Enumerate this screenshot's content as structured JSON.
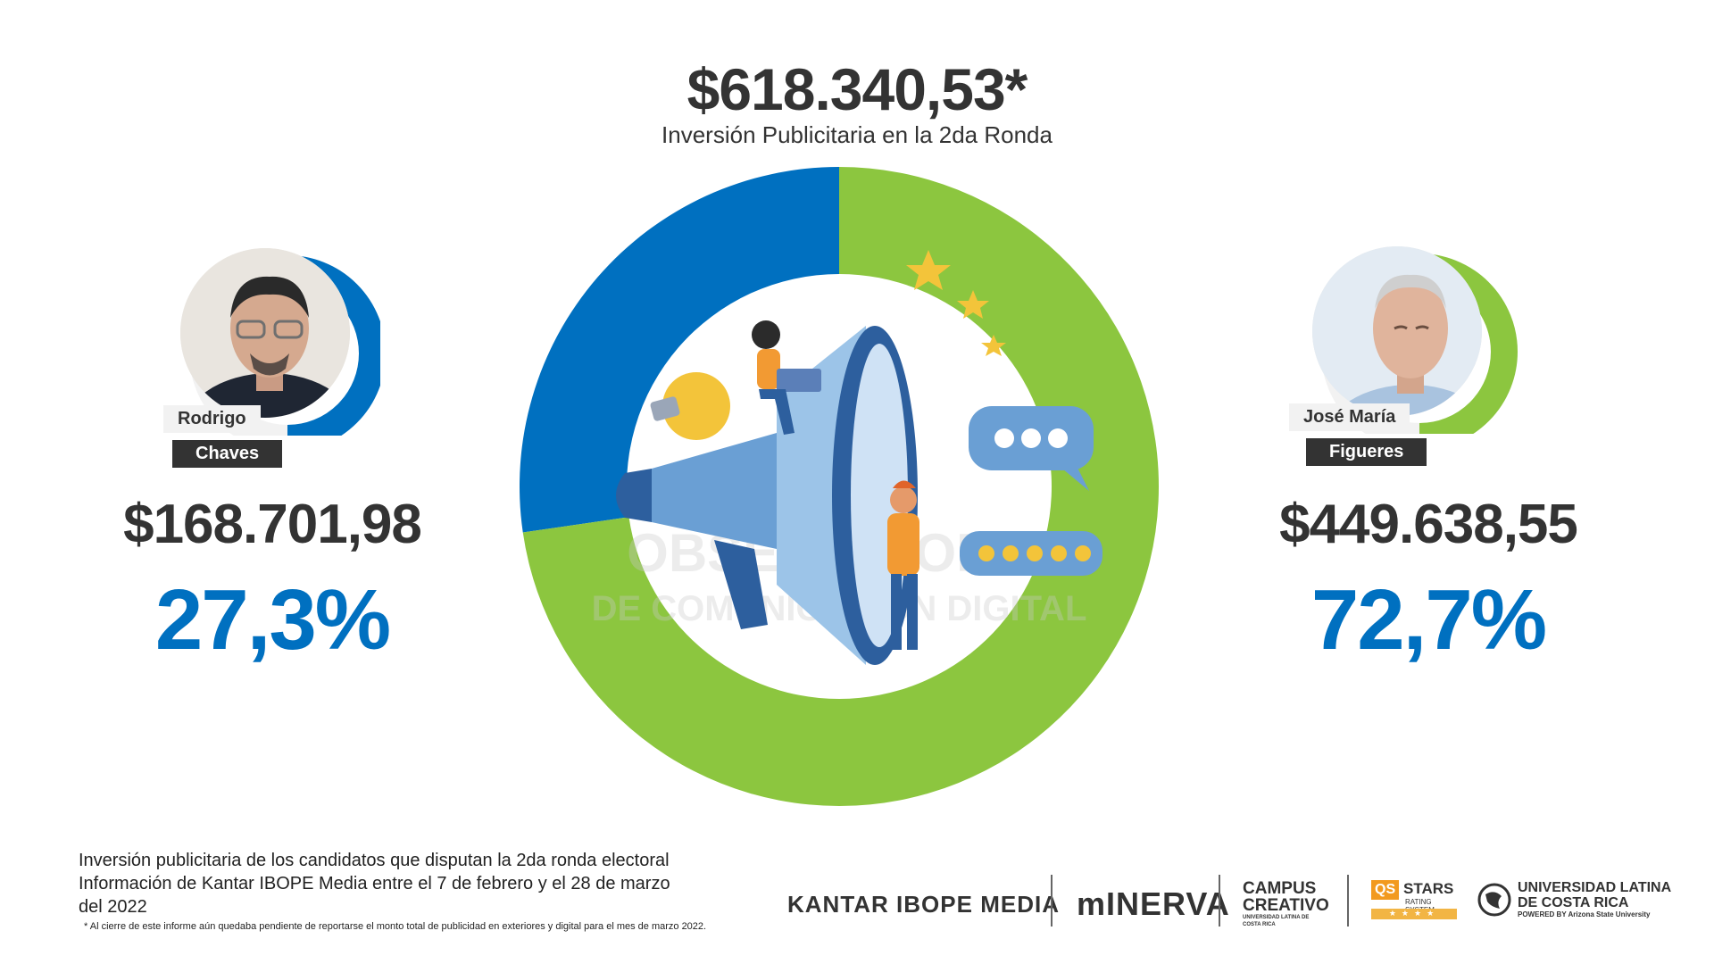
{
  "header": {
    "total": "$618.340,53*",
    "subtitle": "Inversión Publicitaria en la 2da Ronda"
  },
  "candidates": [
    {
      "first": "Rodrigo",
      "last": "Chaves",
      "amount": "$168.701,98",
      "percent": "27,3%",
      "color": "#0070c0"
    },
    {
      "first": "José María",
      "last": "Figueres",
      "amount": "$449.638,55",
      "percent": "72,7%",
      "color": "#8cc63f"
    }
  ],
  "chart_data": {
    "type": "pie",
    "categories": [
      "Rodrigo Chaves",
      "José María Figueres"
    ],
    "values": [
      27.3,
      72.7
    ],
    "colors": [
      "#0070c0",
      "#8cc63f"
    ],
    "title": "Inversión Publicitaria en la 2da Ronda"
  },
  "watermark": {
    "line1": "OBSERVATORIO",
    "line2": "DE COMUNICACIÓN DIGITAL"
  },
  "footer": {
    "line1": "Inversión publicitaria de los candidatos que disputan la 2da ronda electoral",
    "line2": "Información de Kantar IBOPE Media entre el 7 de febrero y el 28 de marzo",
    "line3": "del 2022",
    "note": "* Al cierre de este informe aún quedaba pendiente de reportarse el monto total de publicidad en exteriores y digital  para el mes de marzo 2022."
  },
  "logos": {
    "kantar": "KANTAR IBOPE MEDIA",
    "minerva": "mINERVA",
    "campus1": "CAMPUS",
    "campus2": "CREATIVO",
    "campus3": "UNIVERSIDAD LATINA DE COSTA RICA",
    "qs": "QS",
    "stars": "STARS",
    "stars_sub": "RATING SYSTEM",
    "ulatina1": "UNIVERSIDAD LATINA",
    "ulatina2": "DE COSTA RICA",
    "ulatina3": "POWERED BY Arizona State University"
  }
}
